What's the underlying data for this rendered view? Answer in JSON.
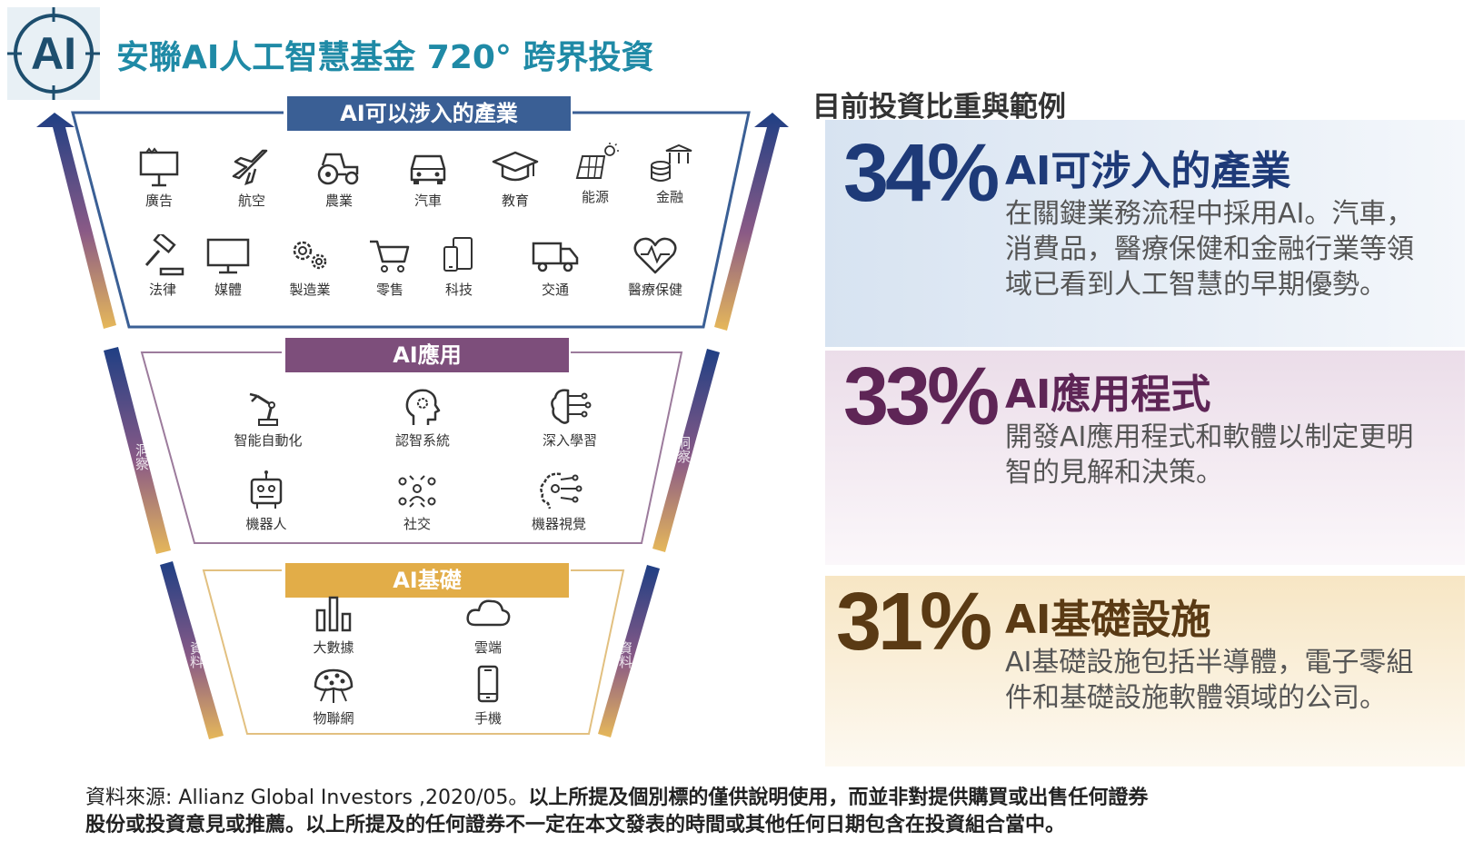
{
  "header": {
    "title": "安聯AI人工智慧基金 720° 跨界投資",
    "logo_text": "AI"
  },
  "funnel": {
    "industries": {
      "header": "AI可以涉入的產業",
      "items": [
        {
          "label": "廣告",
          "icon": "billboard-icon"
        },
        {
          "label": "航空",
          "icon": "airplane-icon"
        },
        {
          "label": "農業",
          "icon": "tractor-icon"
        },
        {
          "label": "汽車",
          "icon": "car-icon"
        },
        {
          "label": "教育",
          "icon": "graduation-cap-icon"
        },
        {
          "label": "能源",
          "icon": "solar-panel-icon"
        },
        {
          "label": "金融",
          "icon": "bank-coins-icon"
        },
        {
          "label": "法律",
          "icon": "gavel-icon"
        },
        {
          "label": "媒體",
          "icon": "monitor-icon"
        },
        {
          "label": "製造業",
          "icon": "gears-icon"
        },
        {
          "label": "零售",
          "icon": "shopping-cart-icon"
        },
        {
          "label": "科技",
          "icon": "devices-icon"
        },
        {
          "label": "交通",
          "icon": "truck-icon"
        },
        {
          "label": "醫療保健",
          "icon": "heart-pulse-icon"
        }
      ]
    },
    "applications": {
      "header": "AI應用",
      "items": [
        {
          "label": "智能自動化",
          "icon": "robot-arm-icon"
        },
        {
          "label": "認智系統",
          "icon": "head-gear-icon"
        },
        {
          "label": "深入學習",
          "icon": "brain-circuit-icon"
        },
        {
          "label": "機器人",
          "icon": "robot-icon"
        },
        {
          "label": "社交",
          "icon": "people-network-icon"
        },
        {
          "label": "機器視覺",
          "icon": "head-circuit-icon"
        }
      ]
    },
    "infrastructure": {
      "header": "AI基礎",
      "items": [
        {
          "label": "大數據",
          "icon": "bar-chart-icon"
        },
        {
          "label": "雲端",
          "icon": "cloud-icon"
        },
        {
          "label": "物聯網",
          "icon": "iot-globe-icon"
        },
        {
          "label": "手機",
          "icon": "phone-icon"
        }
      ]
    },
    "side_labels": {
      "left_upper": "洞察",
      "right_upper": "洞察",
      "left_lower": "資料",
      "right_lower": "資料"
    },
    "colors": {
      "industries": "#3a5f95",
      "applications": "#7d4e7b",
      "infrastructure": "#e2ad48"
    }
  },
  "investments": {
    "heading": "目前投資比重與範例",
    "panels": [
      {
        "percent": "34%",
        "title": "AI可涉入的產業",
        "description": "在關鍵業務流程中採用AI。汽車，消費品，醫療保健和金融行業等領域已看到人工智慧的早期優勢。",
        "color": "#1e3a78"
      },
      {
        "percent": "33%",
        "title": "AI應用程式",
        "description": "開發AI應用程式和軟體以制定更明智的見解和決策。",
        "color": "#5e2556"
      },
      {
        "percent": "31%",
        "title": "AI基礎設施",
        "description": "AI基礎設施包括半導體，電子零組件和基礎設施軟體領域的公司。",
        "color": "#5a3a14"
      }
    ]
  },
  "footer": {
    "source": "資料來源: Allianz Global Investors ,2020/05。",
    "disclaimer_1": "以上所提及個別標的僅供說明使用，而並非對提供購買或出售任何證券",
    "disclaimer_2": "股份或投資意見或推薦。以上所提及的任何證券不一定在本文發表的時間或其他任何日期包含在投資組合當中。"
  }
}
